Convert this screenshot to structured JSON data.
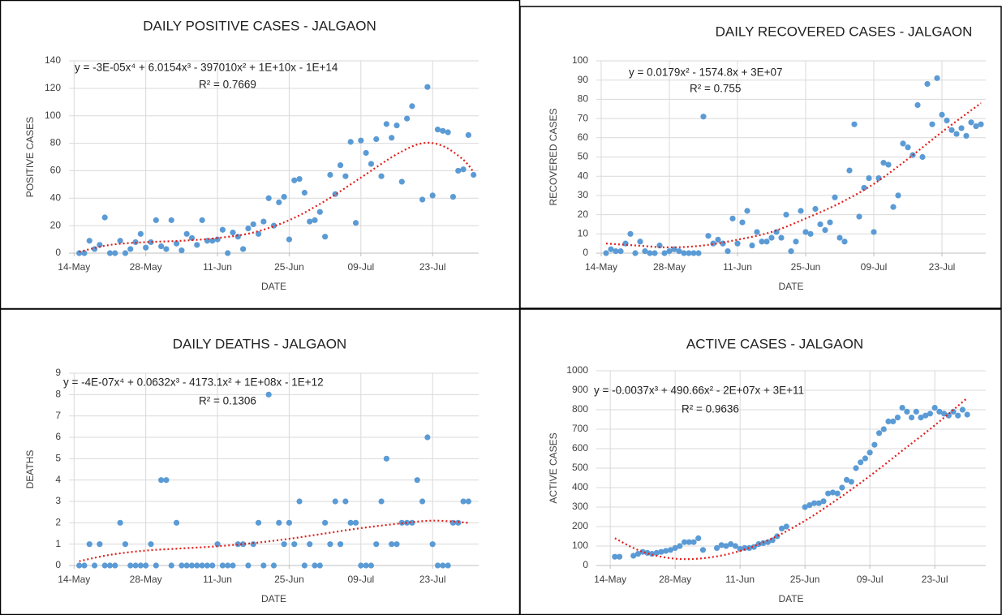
{
  "chart_data": [
    {
      "type": "scatter",
      "title": "DAILY POSITIVE CASES - JALGAON",
      "x_label": "DATE",
      "y_label": "POSITIVE CASES",
      "equation": "y = -3E-05x⁴ + 6.0154x³ - 397010x² + 1E+10x - 1E+14",
      "r_squared": "R² = 0.7669",
      "color": "#5b9bd5",
      "grid": true,
      "xlim": [
        "13-May",
        "01-Aug"
      ],
      "xticks": [
        "14-May",
        "28-May",
        "11-Jun",
        "25-Jun",
        "09-Jul",
        "23-Jul"
      ],
      "ylim": [
        0,
        140
      ],
      "yticks": [
        0,
        20,
        40,
        60,
        80,
        100,
        120,
        140
      ],
      "x": [
        "15-May",
        "16-May",
        "17-May",
        "18-May",
        "19-May",
        "20-May",
        "21-May",
        "22-May",
        "23-May",
        "24-May",
        "25-May",
        "26-May",
        "27-May",
        "28-May",
        "29-May",
        "30-May",
        "31-May",
        "01-Jun",
        "02-Jun",
        "03-Jun",
        "04-Jun",
        "05-Jun",
        "06-Jun",
        "07-Jun",
        "08-Jun",
        "09-Jun",
        "10-Jun",
        "11-Jun",
        "12-Jun",
        "13-Jun",
        "14-Jun",
        "15-Jun",
        "16-Jun",
        "17-Jun",
        "18-Jun",
        "19-Jun",
        "20-Jun",
        "21-Jun",
        "22-Jun",
        "23-Jun",
        "24-Jun",
        "25-Jun",
        "26-Jun",
        "27-Jun",
        "28-Jun",
        "29-Jun",
        "30-Jun",
        "01-Jul",
        "02-Jul",
        "03-Jul",
        "04-Jul",
        "05-Jul",
        "06-Jul",
        "07-Jul",
        "08-Jul",
        "09-Jul",
        "10-Jul",
        "11-Jul",
        "12-Jul",
        "13-Jul",
        "14-Jul",
        "15-Jul",
        "16-Jul",
        "17-Jul",
        "18-Jul",
        "19-Jul",
        "21-Jul",
        "22-Jul",
        "23-Jul",
        "24-Jul",
        "25-Jul",
        "26-Jul",
        "27-Jul",
        "28-Jul",
        "29-Jul",
        "30-Jul",
        "31-Jul"
      ],
      "values": [
        0,
        0,
        9,
        3,
        6,
        26,
        0,
        0,
        9,
        0,
        3,
        8,
        14,
        4,
        8,
        24,
        5,
        3,
        24,
        7,
        2,
        14,
        11,
        6,
        24,
        9,
        9,
        10,
        17,
        0,
        15,
        12,
        3,
        18,
        21,
        14,
        23,
        40,
        20,
        37,
        41,
        10,
        53,
        54,
        44,
        23,
        24,
        30,
        12,
        57,
        43,
        64,
        56,
        81,
        22,
        82,
        73,
        65,
        83,
        56,
        94,
        84,
        93,
        52,
        98,
        107,
        39,
        121,
        42,
        90,
        89,
        88,
        41,
        60,
        61,
        86,
        57
      ],
      "trendline": {
        "color": "#e0201b",
        "x": [
          "15-May",
          "21-May",
          "28-May",
          "04-Jun",
          "11-Jun",
          "18-Jun",
          "25-Jun",
          "02-Jul",
          "09-Jul",
          "16-Jul",
          "21-Jul",
          "25-Jul",
          "29-Jul",
          "31-Jul"
        ],
        "values": [
          1,
          6,
          8,
          9,
          11,
          15,
          24,
          38,
          55,
          72,
          80,
          78,
          68,
          59
        ]
      }
    },
    {
      "type": "scatter",
      "title": "DAILY RECOVERED CASES - JALGAON",
      "x_label": "DATE",
      "y_label": "RECOVERED CASES",
      "equation": "y = 0.0179x² - 1574.8x + 3E+07",
      "r_squared": "R² = 0.755",
      "color": "#5b9bd5",
      "grid": true,
      "xlim": [
        "13-May",
        "01-Aug"
      ],
      "xticks": [
        "14-May",
        "28-May",
        "11-Jun",
        "25-Jun",
        "09-Jul",
        "23-Jul"
      ],
      "ylim": [
        0,
        100
      ],
      "yticks": [
        0,
        10,
        20,
        30,
        40,
        50,
        60,
        70,
        80,
        90,
        100
      ],
      "x": [
        "15-May",
        "16-May",
        "17-May",
        "18-May",
        "19-May",
        "20-May",
        "21-May",
        "22-May",
        "23-May",
        "24-May",
        "25-May",
        "26-May",
        "27-May",
        "28-May",
        "29-May",
        "30-May",
        "31-May",
        "01-Jun",
        "02-Jun",
        "03-Jun",
        "04-Jun",
        "05-Jun",
        "06-Jun",
        "07-Jun",
        "08-Jun",
        "09-Jun",
        "10-Jun",
        "11-Jun",
        "12-Jun",
        "13-Jun",
        "14-Jun",
        "15-Jun",
        "16-Jun",
        "17-Jun",
        "18-Jun",
        "19-Jun",
        "20-Jun",
        "21-Jun",
        "22-Jun",
        "23-Jun",
        "24-Jun",
        "25-Jun",
        "26-Jun",
        "27-Jun",
        "28-Jun",
        "29-Jun",
        "30-Jun",
        "01-Jul",
        "02-Jul",
        "03-Jul",
        "04-Jul",
        "05-Jul",
        "06-Jul",
        "07-Jul",
        "08-Jul",
        "09-Jul",
        "10-Jul",
        "11-Jul",
        "12-Jul",
        "13-Jul",
        "14-Jul",
        "15-Jul",
        "16-Jul",
        "17-Jul",
        "18-Jul",
        "19-Jul",
        "20-Jul",
        "21-Jul",
        "22-Jul",
        "23-Jul",
        "24-Jul",
        "25-Jul",
        "26-Jul",
        "27-Jul",
        "28-Jul",
        "29-Jul",
        "30-Jul",
        "31-Jul"
      ],
      "values": [
        0,
        2,
        1,
        1,
        5,
        10,
        0,
        6,
        1,
        0,
        0,
        4,
        0,
        1,
        2,
        1,
        0,
        0,
        0,
        0,
        71,
        9,
        5,
        7,
        5,
        1,
        18,
        5,
        16,
        22,
        4,
        11,
        6,
        6,
        8,
        11,
        8,
        20,
        1,
        6,
        22,
        11,
        10,
        23,
        15,
        12,
        16,
        29,
        8,
        6,
        43,
        67,
        19,
        34,
        39,
        11,
        39,
        47,
        46,
        24,
        30,
        57,
        55,
        51,
        77,
        50,
        88,
        67,
        91,
        72,
        69,
        64,
        62,
        65,
        61,
        68,
        66,
        67
      ],
      "trendline": {
        "color": "#e0201b",
        "x": [
          "15-May",
          "21-May",
          "28-May",
          "04-Jun",
          "11-Jun",
          "18-Jun",
          "25-Jun",
          "02-Jul",
          "09-Jul",
          "16-Jul",
          "23-Jul",
          "31-Jul"
        ],
        "values": [
          5,
          4,
          3,
          4,
          7,
          11,
          18,
          26,
          36,
          49,
          63,
          78
        ]
      }
    },
    {
      "type": "scatter",
      "title": "DAILY  DEATHS - JALGAON",
      "x_label": "DATE",
      "y_label": "DEATHS",
      "equation": "y = -4E-07x⁴ + 0.0632x³ - 4173.1x² + 1E+08x - 1E+12",
      "r_squared": "R² = 0.1306",
      "color": "#5b9bd5",
      "grid": true,
      "xlim": [
        "13-May",
        "01-Aug"
      ],
      "xticks": [
        "14-May",
        "28-May",
        "11-Jun",
        "25-Jun",
        "09-Jul",
        "23-Jul"
      ],
      "ylim": [
        0,
        9
      ],
      "yticks": [
        0,
        1,
        2,
        3,
        4,
        5,
        6,
        7,
        8,
        9
      ],
      "x": [
        "15-May",
        "16-May",
        "17-May",
        "18-May",
        "19-May",
        "20-May",
        "21-May",
        "22-May",
        "23-May",
        "24-May",
        "25-May",
        "26-May",
        "27-May",
        "28-May",
        "29-May",
        "30-May",
        "31-May",
        "01-Jun",
        "02-Jun",
        "03-Jun",
        "04-Jun",
        "05-Jun",
        "06-Jun",
        "07-Jun",
        "08-Jun",
        "09-Jun",
        "10-Jun",
        "11-Jun",
        "12-Jun",
        "13-Jun",
        "14-Jun",
        "15-Jun",
        "16-Jun",
        "17-Jun",
        "18-Jun",
        "19-Jun",
        "20-Jun",
        "21-Jun",
        "22-Jun",
        "23-Jun",
        "24-Jun",
        "25-Jun",
        "26-Jun",
        "27-Jun",
        "28-Jun",
        "29-Jun",
        "30-Jun",
        "01-Jul",
        "02-Jul",
        "03-Jul",
        "04-Jul",
        "05-Jul",
        "06-Jul",
        "07-Jul",
        "08-Jul",
        "09-Jul",
        "10-Jul",
        "11-Jul",
        "12-Jul",
        "13-Jul",
        "14-Jul",
        "15-Jul",
        "16-Jul",
        "17-Jul",
        "18-Jul",
        "19-Jul",
        "20-Jul",
        "21-Jul",
        "22-Jul",
        "23-Jul",
        "24-Jul",
        "25-Jul",
        "26-Jul",
        "27-Jul",
        "28-Jul",
        "29-Jul",
        "30-Jul"
      ],
      "values": [
        0,
        0,
        1,
        0,
        1,
        0,
        0,
        0,
        2,
        1,
        0,
        0,
        0,
        0,
        1,
        0,
        4,
        4,
        0,
        2,
        0,
        0,
        0,
        0,
        0,
        0,
        0,
        1,
        0,
        0,
        0,
        1,
        1,
        0,
        1,
        2,
        0,
        8,
        0,
        2,
        1,
        2,
        1,
        3,
        0,
        1,
        0,
        0,
        2,
        1,
        3,
        1,
        3,
        2,
        2,
        0,
        0,
        0,
        1,
        3,
        5,
        1,
        1,
        2,
        2,
        2,
        4,
        3,
        6,
        1,
        0,
        0,
        0,
        2,
        2,
        3,
        3
      ],
      "trendline": {
        "color": "#e0201b",
        "x": [
          "15-May",
          "21-May",
          "28-May",
          "04-Jun",
          "11-Jun",
          "18-Jun",
          "25-Jun",
          "02-Jul",
          "09-Jul",
          "16-Jul",
          "23-Jul",
          "30-Jul"
        ],
        "values": [
          0.2,
          0.5,
          0.7,
          0.8,
          0.9,
          1.05,
          1.25,
          1.5,
          1.75,
          1.95,
          2.1,
          2
        ]
      }
    },
    {
      "type": "scatter",
      "title": "ACTIVE CASES - JALGAON",
      "x_label": "DATE",
      "y_label": "ACTIVE CASES",
      "equation": "y = -0.0037x³ + 490.66x² - 2E+07x + 3E+11",
      "r_squared": "R² = 0.9636",
      "color": "#5b9bd5",
      "grid": true,
      "xlim": [
        "11-May",
        "03-Aug"
      ],
      "xticks": [
        "14-May",
        "28-May",
        "11-Jun",
        "25-Jun",
        "09-Jul",
        "23-Jul"
      ],
      "ylim": [
        0,
        1000
      ],
      "yticks": [
        0,
        100,
        200,
        300,
        400,
        500,
        600,
        700,
        800,
        900,
        1000
      ],
      "x": [
        "15-May",
        "16-May",
        "19-May",
        "20-May",
        "21-May",
        "22-May",
        "23-May",
        "24-May",
        "25-May",
        "26-May",
        "27-May",
        "28-May",
        "29-May",
        "30-May",
        "31-May",
        "01-Jun",
        "02-Jun",
        "03-Jun",
        "06-Jun",
        "07-Jun",
        "08-Jun",
        "09-Jun",
        "10-Jun",
        "11-Jun",
        "12-Jun",
        "13-Jun",
        "14-Jun",
        "15-Jun",
        "16-Jun",
        "17-Jun",
        "18-Jun",
        "19-Jun",
        "20-Jun",
        "21-Jun",
        "25-Jun",
        "26-Jun",
        "27-Jun",
        "28-Jun",
        "29-Jun",
        "30-Jun",
        "01-Jul",
        "02-Jul",
        "03-Jul",
        "04-Jul",
        "05-Jul",
        "06-Jul",
        "07-Jul",
        "08-Jul",
        "09-Jul",
        "10-Jul",
        "11-Jul",
        "12-Jul",
        "13-Jul",
        "14-Jul",
        "15-Jul",
        "16-Jul",
        "17-Jul",
        "18-Jul",
        "19-Jul",
        "20-Jul",
        "21-Jul",
        "22-Jul",
        "23-Jul",
        "24-Jul",
        "25-Jul",
        "26-Jul",
        "27-Jul",
        "28-Jul",
        "29-Jul",
        "30-Jul"
      ],
      "values": [
        45,
        45,
        50,
        60,
        70,
        65,
        60,
        65,
        70,
        75,
        80,
        90,
        100,
        120,
        120,
        120,
        140,
        80,
        90,
        105,
        100,
        110,
        100,
        85,
        90,
        90,
        95,
        110,
        115,
        120,
        130,
        150,
        190,
        200,
        300,
        310,
        320,
        320,
        330,
        370,
        375,
        370,
        400,
        440,
        430,
        500,
        530,
        550,
        580,
        620,
        680,
        700,
        740,
        740,
        760,
        810,
        790,
        760,
        790,
        760,
        770,
        780,
        810,
        790,
        780,
        770,
        790,
        770,
        800,
        775
      ],
      "trendline": {
        "color": "#e0201b",
        "x": [
          "15-May",
          "21-May",
          "28-May",
          "04-Jun",
          "11-Jun",
          "18-Jun",
          "25-Jun",
          "02-Jul",
          "09-Jul",
          "16-Jul",
          "23-Jul",
          "30-Jul"
        ],
        "values": [
          140,
          70,
          35,
          40,
          75,
          140,
          230,
          340,
          460,
          590,
          720,
          860
        ]
      }
    }
  ]
}
